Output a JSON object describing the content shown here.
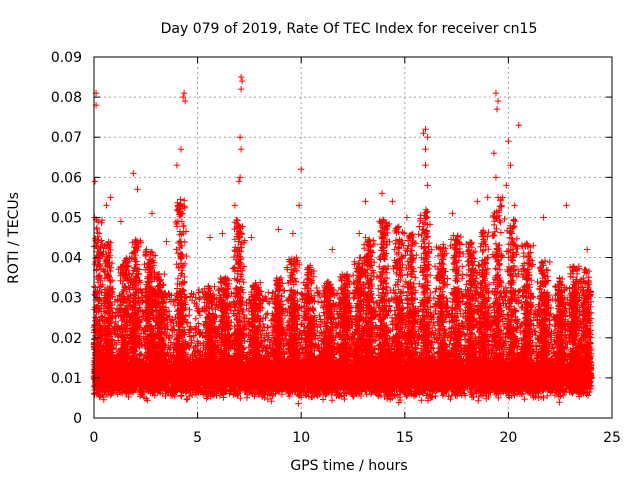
{
  "chart_data": {
    "type": "scatter",
    "title": "Day 079 of 2019, Rate Of TEC Index for receiver cn15",
    "xlabel": "GPS time / hours",
    "ylabel": "ROTI / TECUs",
    "xlim": [
      0,
      25
    ],
    "ylim": [
      0,
      0.09
    ],
    "grid": true,
    "marker": "+",
    "marker_color": "#ff0000",
    "x_ticks": [
      0,
      5,
      10,
      15,
      20,
      25
    ],
    "x_tick_labels": [
      "0",
      "5",
      "10",
      "15",
      "20",
      "25"
    ],
    "y_ticks": [
      0,
      0.01,
      0.02,
      0.03,
      0.04,
      0.05,
      0.06,
      0.07,
      0.08,
      0.09
    ],
    "y_tick_labels": [
      "0",
      "0.01",
      "0.02",
      "0.03",
      "0.04",
      "0.05",
      "0.06",
      "0.07",
      "0.08",
      "0.09"
    ],
    "x_data_range": [
      0,
      24
    ],
    "typical_baseline_range": [
      0.004,
      0.015
    ],
    "peaks": [
      {
        "x": 0.1,
        "y": 0.081
      },
      {
        "x": 0.1,
        "y": 0.078
      },
      {
        "x": 0.05,
        "y": 0.059
      },
      {
        "x": 0.6,
        "y": 0.053
      },
      {
        "x": 0.8,
        "y": 0.055
      },
      {
        "x": 1.3,
        "y": 0.049
      },
      {
        "x": 1.9,
        "y": 0.061
      },
      {
        "x": 2.1,
        "y": 0.057
      },
      {
        "x": 2.8,
        "y": 0.051
      },
      {
        "x": 3.5,
        "y": 0.044
      },
      {
        "x": 4.0,
        "y": 0.063
      },
      {
        "x": 4.2,
        "y": 0.067
      },
      {
        "x": 4.3,
        "y": 0.08
      },
      {
        "x": 4.4,
        "y": 0.079
      },
      {
        "x": 4.35,
        "y": 0.081
      },
      {
        "x": 5.6,
        "y": 0.045
      },
      {
        "x": 6.2,
        "y": 0.046
      },
      {
        "x": 6.8,
        "y": 0.053
      },
      {
        "x": 7.1,
        "y": 0.085
      },
      {
        "x": 7.15,
        "y": 0.084
      },
      {
        "x": 7.1,
        "y": 0.082
      },
      {
        "x": 7.05,
        "y": 0.07
      },
      {
        "x": 7.1,
        "y": 0.067
      },
      {
        "x": 7.05,
        "y": 0.06
      },
      {
        "x": 7.0,
        "y": 0.059
      },
      {
        "x": 7.6,
        "y": 0.045
      },
      {
        "x": 8.9,
        "y": 0.047
      },
      {
        "x": 9.6,
        "y": 0.046
      },
      {
        "x": 9.9,
        "y": 0.053
      },
      {
        "x": 10.0,
        "y": 0.062
      },
      {
        "x": 11.5,
        "y": 0.042
      },
      {
        "x": 12.8,
        "y": 0.046
      },
      {
        "x": 13.1,
        "y": 0.054
      },
      {
        "x": 13.9,
        "y": 0.056
      },
      {
        "x": 14.4,
        "y": 0.054
      },
      {
        "x": 15.1,
        "y": 0.05
      },
      {
        "x": 15.9,
        "y": 0.071
      },
      {
        "x": 16.0,
        "y": 0.072
      },
      {
        "x": 16.1,
        "y": 0.07
      },
      {
        "x": 16.0,
        "y": 0.067
      },
      {
        "x": 16.0,
        "y": 0.063
      },
      {
        "x": 16.1,
        "y": 0.058
      },
      {
        "x": 17.3,
        "y": 0.051
      },
      {
        "x": 18.5,
        "y": 0.054
      },
      {
        "x": 19.0,
        "y": 0.055
      },
      {
        "x": 19.4,
        "y": 0.081
      },
      {
        "x": 19.5,
        "y": 0.079
      },
      {
        "x": 19.45,
        "y": 0.077
      },
      {
        "x": 19.3,
        "y": 0.066
      },
      {
        "x": 19.4,
        "y": 0.06
      },
      {
        "x": 19.9,
        "y": 0.058
      },
      {
        "x": 20.0,
        "y": 0.069
      },
      {
        "x": 20.1,
        "y": 0.063
      },
      {
        "x": 20.5,
        "y": 0.073
      },
      {
        "x": 20.3,
        "y": 0.053
      },
      {
        "x": 21.7,
        "y": 0.05
      },
      {
        "x": 22.8,
        "y": 0.053
      },
      {
        "x": 23.8,
        "y": 0.042
      }
    ],
    "activity_bursts": [
      {
        "x": 0.15,
        "hi": 0.05
      },
      {
        "x": 0.7,
        "hi": 0.044
      },
      {
        "x": 1.5,
        "hi": 0.04
      },
      {
        "x": 2.0,
        "hi": 0.045
      },
      {
        "x": 2.7,
        "hi": 0.042
      },
      {
        "x": 3.2,
        "hi": 0.036
      },
      {
        "x": 4.2,
        "hi": 0.055
      },
      {
        "x": 5.6,
        "hi": 0.033
      },
      {
        "x": 6.3,
        "hi": 0.035
      },
      {
        "x": 7.0,
        "hi": 0.05
      },
      {
        "x": 7.8,
        "hi": 0.034
      },
      {
        "x": 8.9,
        "hi": 0.035
      },
      {
        "x": 9.6,
        "hi": 0.04
      },
      {
        "x": 10.4,
        "hi": 0.038
      },
      {
        "x": 11.3,
        "hi": 0.034
      },
      {
        "x": 12.1,
        "hi": 0.036
      },
      {
        "x": 12.8,
        "hi": 0.04
      },
      {
        "x": 13.3,
        "hi": 0.045
      },
      {
        "x": 14.0,
        "hi": 0.05
      },
      {
        "x": 14.7,
        "hi": 0.048
      },
      {
        "x": 15.3,
        "hi": 0.046
      },
      {
        "x": 16.0,
        "hi": 0.052
      },
      {
        "x": 16.8,
        "hi": 0.044
      },
      {
        "x": 17.5,
        "hi": 0.046
      },
      {
        "x": 18.2,
        "hi": 0.044
      },
      {
        "x": 18.8,
        "hi": 0.047
      },
      {
        "x": 19.5,
        "hi": 0.055
      },
      {
        "x": 20.2,
        "hi": 0.05
      },
      {
        "x": 20.9,
        "hi": 0.044
      },
      {
        "x": 21.7,
        "hi": 0.04
      },
      {
        "x": 22.5,
        "hi": 0.035
      },
      {
        "x": 23.2,
        "hi": 0.038
      },
      {
        "x": 23.8,
        "hi": 0.037
      }
    ]
  }
}
